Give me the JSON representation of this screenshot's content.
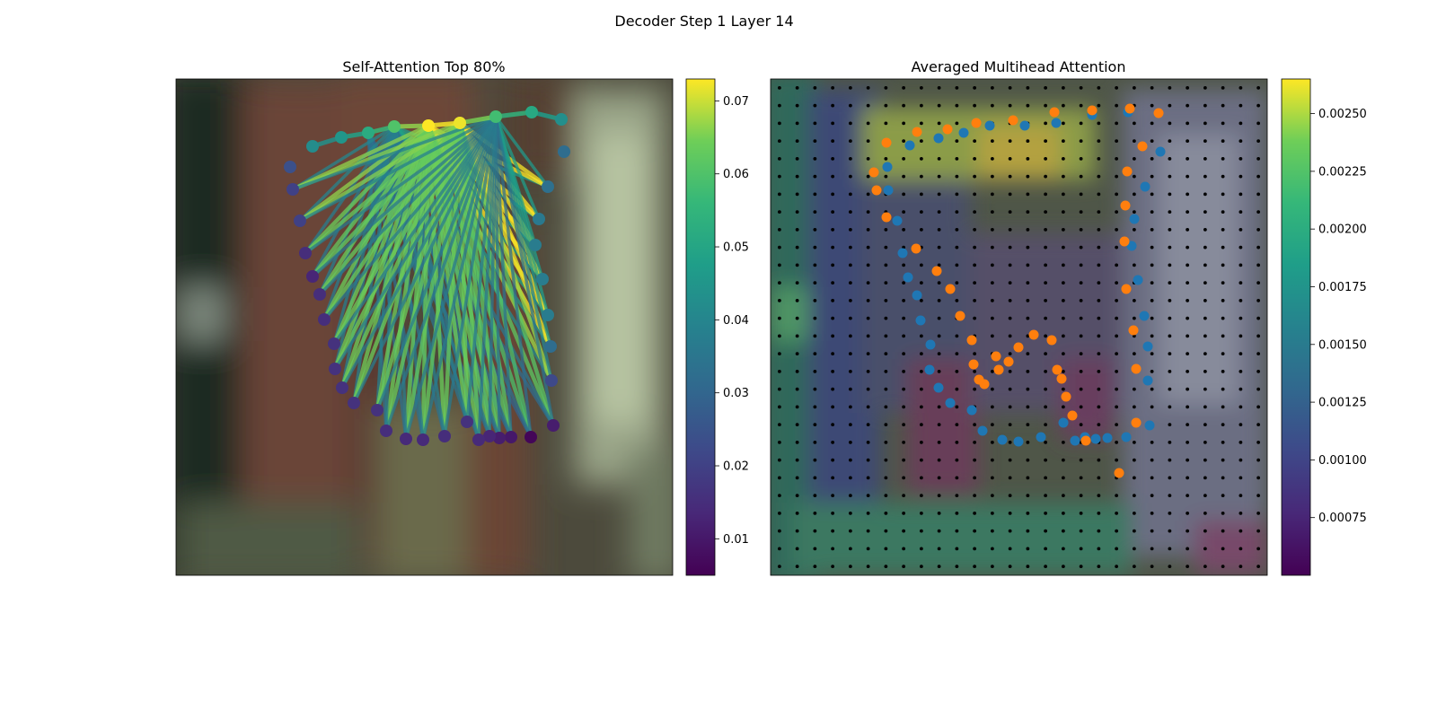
{
  "figure": {
    "title": "Decoder Step 1 Layer 14"
  },
  "chart_data": [
    {
      "type": "scatter",
      "title": "Self-Attention Top 80%",
      "description_kind": "keypoint self-attention graph over image",
      "colorbar": {
        "range": [
          0.005,
          0.073
        ],
        "ticks": [
          0.01,
          0.02,
          0.03,
          0.04,
          0.05,
          0.06,
          0.07
        ],
        "tick_labels": [
          "0.01",
          "0.02",
          "0.03",
          "0.04",
          "0.05",
          "0.06",
          "0.07"
        ],
        "colormap": "viridis"
      },
      "points": [
        {
          "x": 348,
          "y": 163,
          "v": 0.042
        },
        {
          "x": 380,
          "y": 153,
          "v": 0.045
        },
        {
          "x": 410,
          "y": 148,
          "v": 0.052
        },
        {
          "x": 439,
          "y": 141,
          "v": 0.06
        },
        {
          "x": 477,
          "y": 140,
          "v": 0.073
        },
        {
          "x": 512,
          "y": 137,
          "v": 0.072
        },
        {
          "x": 552,
          "y": 130,
          "v": 0.058
        },
        {
          "x": 592,
          "y": 125,
          "v": 0.051
        },
        {
          "x": 625,
          "y": 133,
          "v": 0.043
        },
        {
          "x": 628,
          "y": 169,
          "v": 0.032
        },
        {
          "x": 610,
          "y": 208,
          "v": 0.033
        },
        {
          "x": 600,
          "y": 244,
          "v": 0.036
        },
        {
          "x": 596,
          "y": 273,
          "v": 0.037
        },
        {
          "x": 604,
          "y": 311,
          "v": 0.037
        },
        {
          "x": 610,
          "y": 351,
          "v": 0.037
        },
        {
          "x": 613,
          "y": 386,
          "v": 0.032
        },
        {
          "x": 614,
          "y": 424,
          "v": 0.022
        },
        {
          "x": 616,
          "y": 474,
          "v": 0.011
        },
        {
          "x": 591,
          "y": 487,
          "v": 0.006
        },
        {
          "x": 569,
          "y": 487,
          "v": 0.01
        },
        {
          "x": 556,
          "y": 488,
          "v": 0.011
        },
        {
          "x": 545,
          "y": 486,
          "v": 0.013
        },
        {
          "x": 533,
          "y": 490,
          "v": 0.014
        },
        {
          "x": 520,
          "y": 470,
          "v": 0.016
        },
        {
          "x": 495,
          "y": 486,
          "v": 0.015
        },
        {
          "x": 471,
          "y": 490,
          "v": 0.014
        },
        {
          "x": 452,
          "y": 489,
          "v": 0.014
        },
        {
          "x": 430,
          "y": 480,
          "v": 0.015
        },
        {
          "x": 420,
          "y": 457,
          "v": 0.016
        },
        {
          "x": 394,
          "y": 449,
          "v": 0.016
        },
        {
          "x": 381,
          "y": 432,
          "v": 0.016
        },
        {
          "x": 373,
          "y": 411,
          "v": 0.016
        },
        {
          "x": 372,
          "y": 383,
          "v": 0.016
        },
        {
          "x": 361,
          "y": 356,
          "v": 0.015
        },
        {
          "x": 356,
          "y": 328,
          "v": 0.015
        },
        {
          "x": 348,
          "y": 308,
          "v": 0.013
        },
        {
          "x": 340,
          "y": 282,
          "v": 0.015
        },
        {
          "x": 334,
          "y": 246,
          "v": 0.02
        },
        {
          "x": 326,
          "y": 211,
          "v": 0.02
        },
        {
          "x": 323,
          "y": 186,
          "v": 0.024
        }
      ]
    },
    {
      "type": "heatmap",
      "title": "Averaged Multihead Attention",
      "colorbar": {
        "range": [
          0.0005,
          0.00265
        ],
        "ticks": [
          0.00075,
          0.001,
          0.00125,
          0.0015,
          0.00175,
          0.002,
          0.00225,
          0.0025
        ],
        "tick_labels": [
          "0.00075",
          "0.00100",
          "0.00125",
          "0.00150",
          "0.00175",
          "0.00200",
          "0.00225",
          "0.00250"
        ],
        "colormap": "viridis"
      },
      "grid": {
        "rows": 28,
        "cols": 28
      },
      "series": [
        {
          "color": "#1f77b4",
          "points": [
            [
              1216,
              128
            ],
            [
              1256,
              125
            ],
            [
              1176,
              137
            ],
            [
              1141,
              140
            ],
            [
              1102,
              140
            ],
            [
              1073,
              148
            ],
            [
              1045,
              154
            ],
            [
              1013,
              162
            ],
            [
              988,
              186
            ],
            [
              989,
              212
            ],
            [
              999,
              246
            ],
            [
              1005,
              282
            ],
            [
              1011,
              309
            ],
            [
              1021,
              329
            ],
            [
              1025,
              357
            ],
            [
              1036,
              384
            ],
            [
              1035,
              412
            ],
            [
              1045,
              432
            ],
            [
              1058,
              449
            ],
            [
              1082,
              457
            ],
            [
              1094,
              480
            ],
            [
              1116,
              490
            ],
            [
              1134,
              492
            ],
            [
              1159,
              487
            ],
            [
              1184,
              471
            ],
            [
              1197,
              491
            ],
            [
              1208,
              487
            ],
            [
              1220,
              489
            ],
            [
              1233,
              488
            ],
            [
              1254,
              487
            ],
            [
              1280,
              474
            ],
            [
              1278,
              424
            ],
            [
              1278,
              386
            ],
            [
              1274,
              352
            ],
            [
              1267,
              312
            ],
            [
              1260,
              274
            ],
            [
              1263,
              244
            ],
            [
              1275,
              208
            ],
            [
              1292,
              169
            ]
          ]
        },
        {
          "color": "#ff7f0e",
          "points": [
            [
              987,
              159
            ],
            [
              1021,
              147
            ],
            [
              1055,
              144
            ],
            [
              1087,
              137
            ],
            [
              1128,
              134
            ],
            [
              1174,
              125
            ],
            [
              1216,
              123
            ],
            [
              1258,
              121
            ],
            [
              1290,
              126
            ],
            [
              1272,
              163
            ],
            [
              1255,
              191
            ],
            [
              1253,
              229
            ],
            [
              1252,
              269
            ],
            [
              1254,
              322
            ],
            [
              1262,
              368
            ],
            [
              1265,
              411
            ],
            [
              1265,
              471
            ],
            [
              1246,
              527
            ],
            [
              1209,
              491
            ],
            [
              1194,
              463
            ],
            [
              1187,
              442
            ],
            [
              1182,
              422
            ],
            [
              1177,
              412
            ],
            [
              1171,
              379
            ],
            [
              1151,
              373
            ],
            [
              1134,
              387
            ],
            [
              1123,
              403
            ],
            [
              1112,
              412
            ],
            [
              1109,
              397
            ],
            [
              1096,
              428
            ],
            [
              1090,
              423
            ],
            [
              1084,
              406
            ],
            [
              1082,
              379
            ],
            [
              1069,
              352
            ],
            [
              1058,
              322
            ],
            [
              1043,
              302
            ],
            [
              1020,
              277
            ],
            [
              987,
              242
            ],
            [
              976,
              212
            ],
            [
              973,
              192
            ]
          ]
        }
      ]
    }
  ]
}
